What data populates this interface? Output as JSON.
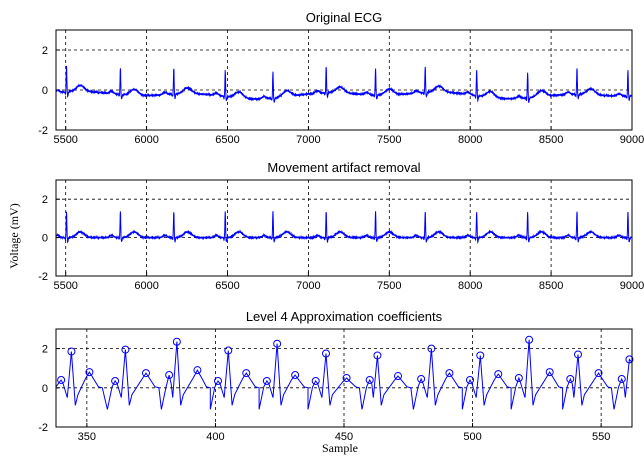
{
  "figure": {
    "ylabel": "Voltage (mV)",
    "xlabel": "Sample"
  },
  "chart_data": [
    {
      "type": "line",
      "title": "Original ECG",
      "xlabel": "",
      "ylabel": "",
      "xlim": [
        5440,
        9000
      ],
      "ylim": [
        -2,
        3
      ],
      "xticks": [
        5500,
        6000,
        6500,
        7000,
        7500,
        8000,
        8500,
        9000
      ],
      "yticks": [
        -2,
        0,
        2
      ],
      "grid": "dashed at ticks",
      "baseline_offset": -0.25,
      "baseline_wander": 0.2,
      "r_peaks": [
        5505,
        5838,
        6168,
        6486,
        6781,
        7110,
        7415,
        7722,
        8040,
        8355,
        8660,
        8975
      ],
      "r_amplitude": 1.3,
      "series": [
        {
          "color": "#0000ff"
        }
      ]
    },
    {
      "type": "line",
      "title": "Movement artifact removal",
      "xlabel": "",
      "ylabel": "",
      "xlim": [
        5440,
        9000
      ],
      "ylim": [
        -2,
        3
      ],
      "xticks": [
        5500,
        6000,
        6500,
        7000,
        7500,
        8000,
        8500,
        9000
      ],
      "yticks": [
        -2,
        0,
        2
      ],
      "grid": "dashed at ticks",
      "baseline_offset": 0,
      "baseline_wander": 0,
      "r_peaks": [
        5505,
        5838,
        6168,
        6486,
        6781,
        7110,
        7415,
        7722,
        8040,
        8355,
        8660,
        8975
      ],
      "r_amplitude": 1.35,
      "series": [
        {
          "color": "#0000ff"
        }
      ]
    },
    {
      "type": "line",
      "title": "Level 4 Approximation coefficients",
      "xlabel": "",
      "ylabel": "",
      "xlim": [
        338,
        562
      ],
      "ylim": [
        -2,
        3
      ],
      "xticks": [
        350,
        400,
        450,
        500,
        550
      ],
      "yticks": [
        -2,
        0,
        2
      ],
      "grid": "dashed at ticks",
      "r_peaks": [
        {
          "x": 344,
          "y": 1.85
        },
        {
          "x": 365,
          "y": 1.95
        },
        {
          "x": 385,
          "y": 2.35
        },
        {
          "x": 405,
          "y": 1.9
        },
        {
          "x": 424,
          "y": 2.25
        },
        {
          "x": 443,
          "y": 1.75
        },
        {
          "x": 463,
          "y": 1.65
        },
        {
          "x": 484,
          "y": 2.0
        },
        {
          "x": 503,
          "y": 1.65
        },
        {
          "x": 522,
          "y": 2.45
        },
        {
          "x": 541,
          "y": 1.7
        },
        {
          "x": 561,
          "y": 1.45
        }
      ],
      "t_waves": [
        {
          "x": 351,
          "y": 0.8
        },
        {
          "x": 373,
          "y": 0.75
        },
        {
          "x": 393,
          "y": 0.9
        },
        {
          "x": 412,
          "y": 0.75
        },
        {
          "x": 431,
          "y": 0.65
        },
        {
          "x": 451,
          "y": 0.5
        },
        {
          "x": 471,
          "y": 0.6
        },
        {
          "x": 491,
          "y": 0.75
        },
        {
          "x": 510,
          "y": 0.7
        },
        {
          "x": 530,
          "y": 0.8
        },
        {
          "x": 549,
          "y": 0.75
        }
      ],
      "pre_peaks": [
        {
          "x": 340,
          "y": 0.4
        },
        {
          "x": 361,
          "y": 0.35
        },
        {
          "x": 382,
          "y": 0.65
        },
        {
          "x": 401,
          "y": 0.35
        },
        {
          "x": 420,
          "y": 0.35
        },
        {
          "x": 439,
          "y": 0.35
        },
        {
          "x": 460,
          "y": 0.4
        },
        {
          "x": 480,
          "y": 0.45
        },
        {
          "x": 499,
          "y": 0.4
        },
        {
          "x": 518,
          "y": 0.5
        },
        {
          "x": 538,
          "y": 0.45
        },
        {
          "x": 558,
          "y": 0.45
        }
      ],
      "series": [
        {
          "color": "#0000ff"
        }
      ]
    }
  ]
}
